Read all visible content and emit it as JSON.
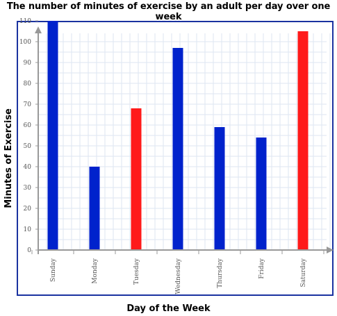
{
  "chart_data": {
    "type": "bar",
    "title": "The number of minutes of exercise by an adult per day over one week",
    "xlabel": "Day of the Week",
    "ylabel": "Minutes of Exercise",
    "categories": [
      "Sunday",
      "Monday",
      "Tuesday",
      "Wednesday",
      "Thursday",
      "Friday",
      "Saturday"
    ],
    "values": [
      110,
      40,
      68,
      97,
      59,
      54,
      105
    ],
    "bar_colors": [
      "#0022cc",
      "#0022cc",
      "#ff1a1a",
      "#0022cc",
      "#0022cc",
      "#0022cc",
      "#ff1a1a"
    ],
    "ylim": [
      0,
      115
    ],
    "yticks": [
      0,
      10,
      20,
      30,
      40,
      50,
      60,
      70,
      80,
      90,
      100,
      110
    ],
    "grid": true,
    "colors": {
      "frame": "#1a32a0",
      "grid": "#dde6f2",
      "axis": "#999999"
    }
  }
}
